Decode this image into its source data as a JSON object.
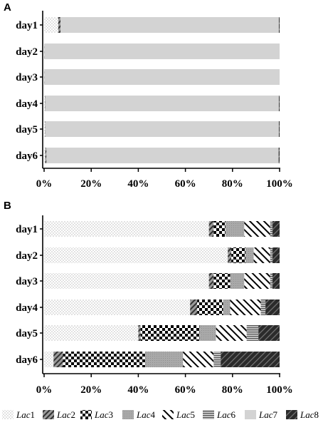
{
  "chart_data": [
    {
      "panel": "A",
      "type": "bar",
      "orientation": "horizontal",
      "stacked": true,
      "categories": [
        "day1",
        "day2",
        "day3",
        "day4",
        "day5",
        "day6"
      ],
      "series": [
        {
          "name": "Lac1",
          "values": [
            6,
            0.1,
            0.1,
            0.3,
            0.5,
            0.5
          ]
        },
        {
          "name": "Lac2",
          "values": [
            1,
            0.1,
            0.1,
            0.1,
            0.1,
            0.5
          ]
        },
        {
          "name": "Lac3",
          "values": [
            0,
            0,
            0,
            0,
            0,
            0
          ]
        },
        {
          "name": "Lac4",
          "values": [
            0,
            0,
            0,
            0,
            0,
            0
          ]
        },
        {
          "name": "Lac5",
          "values": [
            0,
            0,
            0,
            0,
            0,
            0
          ]
        },
        {
          "name": "Lac6",
          "values": [
            0,
            0,
            0,
            0,
            0,
            0
          ]
        },
        {
          "name": "Lac7",
          "values": [
            92.7,
            99.8,
            99.8,
            99.3,
            99.1,
            98.6
          ]
        },
        {
          "name": "Lac8",
          "values": [
            0.3,
            0,
            0,
            0.3,
            0.3,
            0.4
          ]
        }
      ],
      "xticks": [
        "0%",
        "20%",
        "40%",
        "60%",
        "80%",
        "100%"
      ],
      "xlim": [
        0,
        100
      ]
    },
    {
      "panel": "B",
      "type": "bar",
      "orientation": "horizontal",
      "stacked": true,
      "categories": [
        "day1",
        "day2",
        "day3",
        "day4",
        "day5",
        "day6"
      ],
      "series": [
        {
          "name": "Lac1",
          "values": [
            70,
            78,
            70,
            62,
            40,
            4
          ]
        },
        {
          "name": "Lac2",
          "values": [
            2,
            1.5,
            2,
            3,
            1,
            4
          ]
        },
        {
          "name": "Lac3",
          "values": [
            5,
            6,
            7,
            11,
            25,
            35
          ]
        },
        {
          "name": "Lac4",
          "values": [
            8,
            3.5,
            6,
            3,
            7,
            16
          ]
        },
        {
          "name": "Lac5",
          "values": [
            11,
            7,
            11,
            13,
            13,
            13
          ]
        },
        {
          "name": "Lac6",
          "values": [
            1,
            1,
            1,
            2,
            5,
            3
          ]
        },
        {
          "name": "Lac7",
          "values": [
            0,
            0,
            0,
            0,
            0,
            0
          ]
        },
        {
          "name": "Lac8",
          "values": [
            3,
            3,
            3,
            6,
            9,
            25
          ]
        }
      ],
      "xticks": [
        "0%",
        "20%",
        "40%",
        "60%",
        "80%",
        "100%"
      ],
      "xlim": [
        0,
        100
      ]
    }
  ],
  "legend": {
    "placement": "bottom",
    "items": [
      {
        "prefix": "Lac",
        "num": "1",
        "pattern": "dots"
      },
      {
        "prefix": "Lac",
        "num": "2",
        "pattern": "diagonal-gray"
      },
      {
        "prefix": "Lac",
        "num": "3",
        "pattern": "checker"
      },
      {
        "prefix": "Lac",
        "num": "4",
        "pattern": "gray-dots"
      },
      {
        "prefix": "Lac",
        "num": "5",
        "pattern": "diagonal-back"
      },
      {
        "prefix": "Lac",
        "num": "6",
        "pattern": "horizontal"
      },
      {
        "prefix": "Lac",
        "num": "7",
        "pattern": "light-gray"
      },
      {
        "prefix": "Lac",
        "num": "8",
        "pattern": "dark-diagonal"
      }
    ]
  },
  "colors": {
    "lac7_fill": "#d3d3d3",
    "lac4_fill": "#a9a9a9",
    "lac8_fill": "#2b2b2b",
    "lac6_fill": "#8c8c8c"
  }
}
